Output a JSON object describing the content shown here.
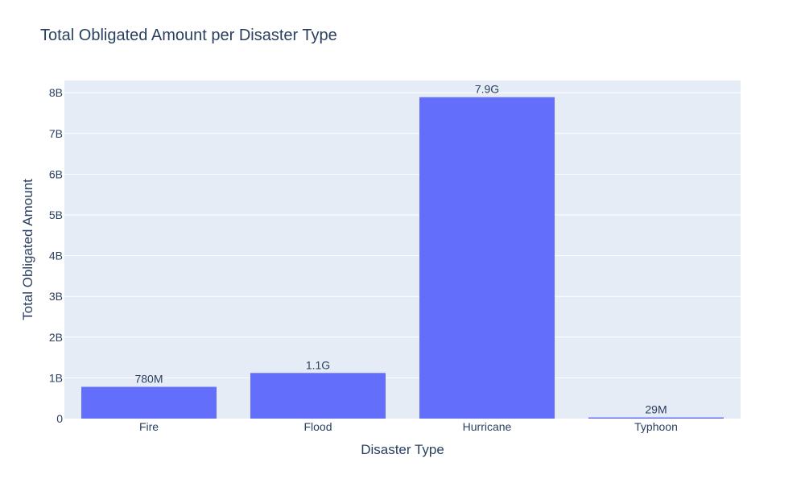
{
  "chart_data": {
    "type": "bar",
    "title": "Total Obligated Amount per Disaster Type",
    "xlabel": "Disaster Type",
    "ylabel": "Total Obligated Amount",
    "categories": [
      "Fire",
      "Flood",
      "Hurricane",
      "Typhoon"
    ],
    "values": [
      780000000,
      1120000000,
      7890000000,
      29000000
    ],
    "bar_labels": [
      "780M",
      "1.1G",
      "7.9G",
      "29M"
    ],
    "ylim": [
      0,
      8300000000
    ],
    "yticks": [
      0,
      1000000000,
      2000000000,
      3000000000,
      4000000000,
      5000000000,
      6000000000,
      7000000000,
      8000000000
    ],
    "ytick_labels": [
      "0",
      "1B",
      "2B",
      "3B",
      "4B",
      "5B",
      "6B",
      "7B",
      "8B"
    ],
    "grid": true,
    "colors": {
      "bar": "#636efa",
      "plot_bg": "#e5ecf6",
      "grid": "#ffffff",
      "text": "#2a3f5f"
    }
  }
}
